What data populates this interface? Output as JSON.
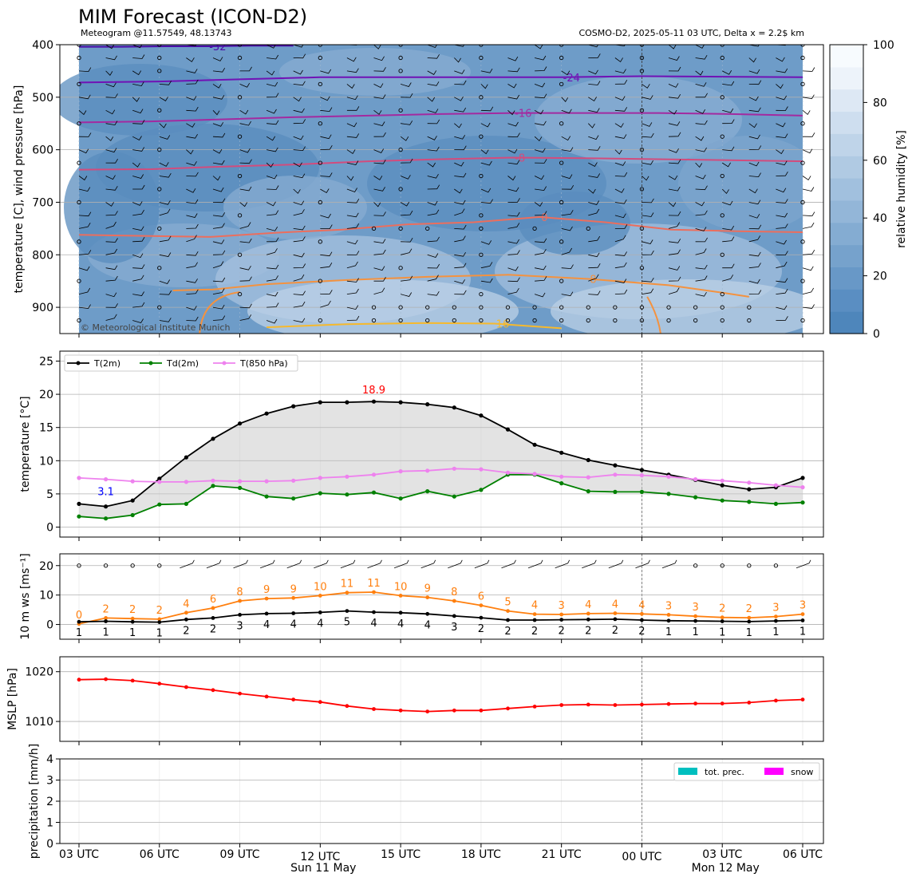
{
  "header": {
    "title": "MIM Forecast (ICON-D2)",
    "subtitle_left": "Meteogram @11.57549, 48.13743",
    "subtitle_right": "COSMO-D2, 2025-05-11 03 UTC, Delta x = 2.2$ km",
    "copyright": "© Meteorological Institute Munich"
  },
  "time_axis": {
    "hours": [
      0,
      3,
      6,
      9,
      12,
      15,
      18,
      21,
      24,
      27
    ],
    "labels": [
      "03 UTC",
      "06 UTC",
      "09 UTC",
      "12 UTC",
      "15 UTC",
      "18 UTC",
      "21 UTC",
      "00 UTC",
      "03 UTC",
      "06 UTC"
    ],
    "date_labels": [
      {
        "hour": 9,
        "text": "Sun 11 May"
      },
      {
        "hour": 24,
        "text": "Mon 12 May"
      }
    ],
    "day_break_hour": 21,
    "x_hours": [
      0,
      1,
      2,
      3,
      4,
      5,
      6,
      7,
      8,
      9,
      10,
      11,
      12,
      13,
      14,
      15,
      16,
      17,
      18,
      19,
      20,
      21,
      22,
      23,
      24,
      25,
      26,
      27
    ]
  },
  "colors": {
    "t2m": "#000000",
    "td2m": "#008000",
    "t850": "#ee82ee",
    "ws": "#ff7f0e",
    "mslp": "#ff0000",
    "tot_prec": "#00bfbf",
    "snow": "#ff00ff",
    "max_label": "#ff0000",
    "min_label": "#0000ff"
  },
  "chart_data": [
    {
      "type": "heatmap",
      "name": "upper-air",
      "ylabel": "temperature [C], wind pressure [hPa]",
      "ylim": [
        950,
        400
      ],
      "yticks": [
        400,
        500,
        600,
        700,
        800,
        900
      ],
      "colorbar": {
        "label": "relative humidity [%]",
        "range": [
          0,
          100
        ],
        "ticks": [
          0,
          20,
          40,
          60,
          80,
          100
        ]
      },
      "isotherms": [
        {
          "label": "-32",
          "color": "#4a0ca6",
          "pressure": [
            404,
            404,
            403,
            403,
            402,
            402
          ]
        },
        {
          "label": "-24",
          "color": "#7012b5",
          "pressure": [
            472,
            470,
            466,
            462,
            462,
            462,
            462,
            460,
            461,
            462
          ]
        },
        {
          "label": "-16",
          "color": "#a32aa0",
          "pressure": [
            548,
            546,
            542,
            538,
            535,
            532,
            530,
            530,
            530,
            532,
            535
          ]
        },
        {
          "label": "-8",
          "color": "#d24c7d",
          "pressure": [
            638,
            637,
            632,
            628,
            622,
            618,
            615,
            616,
            618,
            620,
            622
          ]
        },
        {
          "label": "0",
          "color": "#ec6e5d",
          "pressure": [
            762,
            764,
            766,
            758,
            752,
            742,
            738,
            728,
            738,
            752,
            755,
            757
          ]
        },
        {
          "label": "8",
          "color": "#f4923f",
          "pressure": [
            868,
            866,
            856,
            848,
            842,
            838,
            846,
            858,
            872,
            880
          ]
        },
        {
          "label": "16",
          "color": "#f6b92d",
          "pressure": [
            938,
            932,
            930,
            931,
            940
          ]
        }
      ]
    },
    {
      "type": "line",
      "name": "temperature",
      "ylabel": "temperature [$^\\circ$C]",
      "ylim": [
        -1.5,
        26.5
      ],
      "yticks": [
        0,
        5,
        10,
        15,
        20,
        25
      ],
      "series": [
        {
          "name": "T(2m)",
          "values": [
            3.5,
            3.1,
            4.0,
            7.3,
            10.5,
            13.3,
            15.6,
            17.1,
            18.2,
            18.8,
            18.8,
            18.9,
            18.8,
            18.5,
            18.0,
            16.8,
            14.7,
            12.4,
            11.2,
            10.1,
            9.3,
            8.6,
            7.9,
            7.1,
            6.3,
            5.7,
            6.0,
            7.4
          ]
        },
        {
          "name": "Td(2m)",
          "values": [
            1.6,
            1.3,
            1.8,
            3.4,
            3.5,
            6.2,
            5.9,
            4.6,
            4.3,
            5.1,
            4.9,
            5.2,
            4.3,
            5.4,
            4.6,
            5.6,
            7.9,
            7.9,
            6.6,
            5.4,
            5.3,
            5.3,
            5.0,
            4.5,
            4.0,
            3.8,
            3.5,
            3.7
          ]
        },
        {
          "name": "T(850 hPa)",
          "values": [
            7.4,
            7.2,
            6.9,
            6.8,
            6.8,
            7.0,
            6.9,
            6.9,
            7.0,
            7.4,
            7.6,
            7.9,
            8.4,
            8.5,
            8.8,
            8.7,
            8.2,
            8.0,
            7.6,
            7.5,
            7.9,
            7.8,
            7.6,
            7.2,
            7.0,
            6.7,
            6.3,
            6.0
          ]
        }
      ],
      "max_label": {
        "hour": 11,
        "value": 18.9,
        "text": "18.9"
      },
      "min_label": {
        "hour": 1,
        "value": 3.1,
        "text": "3.1"
      }
    },
    {
      "type": "line",
      "name": "wind",
      "ylabel": "10 m ws [ms$^{-1}$]",
      "ylim": [
        -5,
        24
      ],
      "yticks": [
        0,
        10,
        20
      ],
      "series": [
        {
          "name": "ws",
          "values": [
            0.2,
            2.2,
            2.0,
            1.8,
            4.0,
            5.6,
            8.0,
            8.8,
            9.0,
            9.8,
            10.8,
            11.0,
            9.8,
            9.2,
            8.0,
            6.5,
            4.6,
            3.5,
            3.4,
            3.7,
            3.8,
            3.6,
            3.3,
            2.8,
            2.4,
            2.3,
            2.7,
            3.5
          ]
        },
        {
          "name": "ws-black",
          "values": [
            0.9,
            1.1,
            0.9,
            0.8,
            1.7,
            2.2,
            3.3,
            3.7,
            3.8,
            4.1,
            4.6,
            4.2,
            4.0,
            3.6,
            2.9,
            2.3,
            1.5,
            1.5,
            1.6,
            1.7,
            1.8,
            1.5,
            1.3,
            1.2,
            1.1,
            1.0,
            1.2,
            1.4
          ]
        }
      ],
      "orange_labels": [
        "0",
        "2",
        "2",
        "2",
        "4",
        "6",
        "8",
        "9",
        "9",
        "10",
        "11",
        "11",
        "10",
        "9",
        "8",
        "6",
        "5",
        "4",
        "3",
        "4",
        "4",
        "4",
        "3",
        "3",
        "2",
        "2",
        "3",
        "3"
      ],
      "black_labels": [
        "1",
        "1",
        "1",
        "1",
        "2",
        "2",
        "3",
        "4",
        "4",
        "4",
        "5",
        "4",
        "4",
        "4",
        "3",
        "2",
        "2",
        "2",
        "2",
        "2",
        "2",
        "2",
        "1",
        "1",
        "1",
        "1",
        "1",
        "1"
      ]
    },
    {
      "type": "line",
      "name": "mslp",
      "ylabel": "MSLP [hPa]",
      "ylim": [
        1006,
        1023
      ],
      "yticks": [
        1010,
        1020
      ],
      "series": [
        {
          "name": "MSLP",
          "values": [
            1018.4,
            1018.5,
            1018.2,
            1017.6,
            1016.9,
            1016.3,
            1015.6,
            1015.0,
            1014.4,
            1013.9,
            1013.1,
            1012.5,
            1012.2,
            1012.0,
            1012.2,
            1012.2,
            1012.6,
            1013.0,
            1013.3,
            1013.4,
            1013.3,
            1013.4,
            1013.5,
            1013.6,
            1013.6,
            1013.8,
            1014.2,
            1014.4
          ]
        }
      ]
    },
    {
      "type": "bar",
      "name": "precipitation",
      "ylabel": "precipitation [mm/h]",
      "ylim": [
        0,
        4
      ],
      "yticks": [
        0,
        1,
        2,
        3,
        4
      ],
      "series": [
        {
          "name": "tot. prec.",
          "values": [
            0,
            0,
            0,
            0,
            0,
            0,
            0,
            0,
            0,
            0,
            0,
            0,
            0,
            0,
            0,
            0,
            0,
            0,
            0,
            0,
            0,
            0,
            0,
            0,
            0,
            0,
            0,
            0
          ]
        },
        {
          "name": "snow",
          "values": [
            0,
            0,
            0,
            0,
            0,
            0,
            0,
            0,
            0,
            0,
            0,
            0,
            0,
            0,
            0,
            0,
            0,
            0,
            0,
            0,
            0,
            0,
            0,
            0,
            0,
            0,
            0,
            0
          ]
        }
      ]
    }
  ]
}
